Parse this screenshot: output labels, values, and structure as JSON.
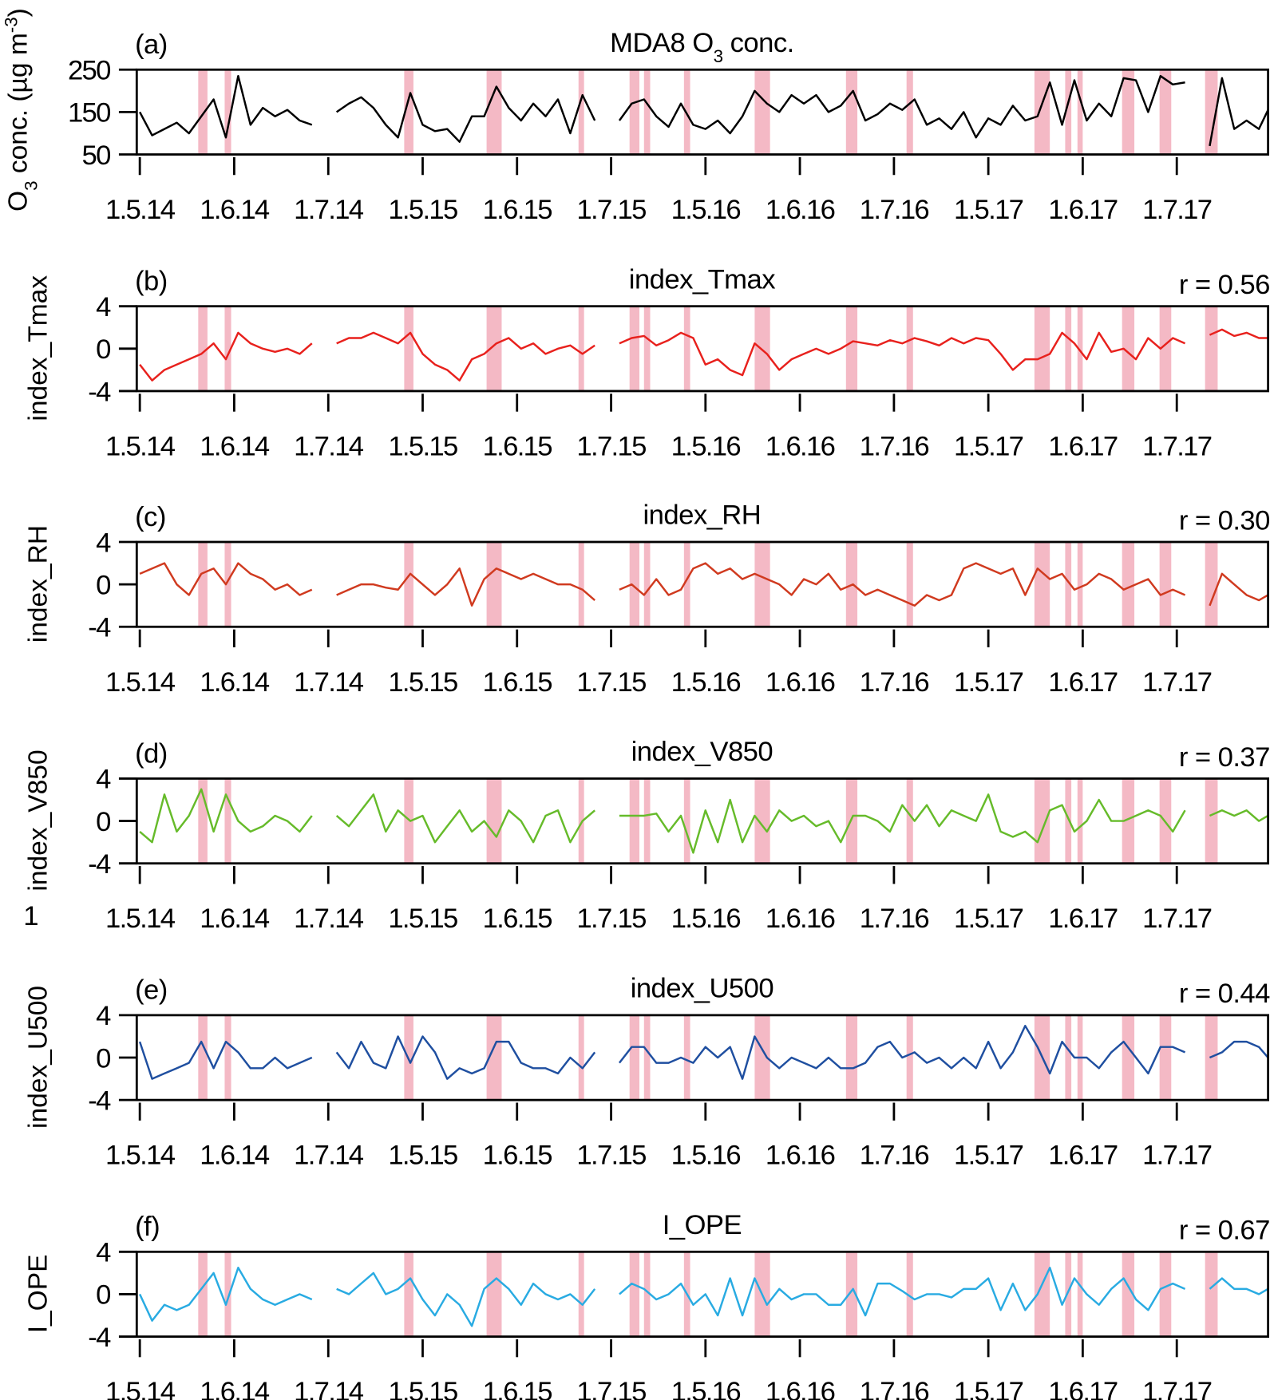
{
  "chart_data": [
    {
      "type": "line",
      "panel_label": "(a)",
      "title_parts": [
        {
          "t": "MDA8 O"
        },
        {
          "t": "3",
          "sub": true
        },
        {
          "t": " conc."
        }
      ],
      "ylabel_parts": [
        {
          "t": "O"
        },
        {
          "t": "3",
          "sub": true
        },
        {
          "t": " conc. (µg m"
        },
        {
          "t": "-3",
          "sup": true
        },
        {
          "t": ")"
        }
      ],
      "r_label": "",
      "ylim": [
        50,
        250
      ],
      "yticks": [
        "250",
        "150",
        "50"
      ],
      "yticks_values": [
        250,
        150,
        50
      ],
      "color": "#000000",
      "values": [
        150,
        95,
        110,
        125,
        100,
        140,
        180,
        90,
        235,
        120,
        160,
        140,
        155,
        130,
        120,
        null,
        150,
        170,
        185,
        160,
        120,
        90,
        195,
        120,
        105,
        110,
        80,
        140,
        140,
        210,
        160,
        130,
        170,
        140,
        180,
        100,
        190,
        130,
        null,
        130,
        170,
        180,
        140,
        115,
        170,
        120,
        110,
        130,
        100,
        140,
        200,
        170,
        150,
        190,
        170,
        190,
        150,
        165,
        200,
        130,
        145,
        170,
        155,
        180,
        120,
        135,
        110,
        150,
        90,
        135,
        120,
        165,
        130,
        140,
        220,
        120,
        225,
        130,
        170,
        140,
        230,
        225,
        150,
        235,
        215,
        220,
        null,
        70,
        230,
        110,
        130,
        110,
        155
      ]
    },
    {
      "type": "line",
      "panel_label": "(b)",
      "title_parts": [
        {
          "t": "index_Tmax"
        }
      ],
      "ylabel_parts": [
        {
          "t": "index_Tmax"
        }
      ],
      "r_label": "r = 0.56",
      "ylim": [
        -4,
        4
      ],
      "yticks": [
        "4",
        "0",
        "-4"
      ],
      "yticks_values": [
        4,
        0,
        -4
      ],
      "color": "#e8211d",
      "values": [
        -1.5,
        -3,
        -2,
        -1.5,
        -1,
        -0.5,
        0.5,
        -1,
        1.5,
        0.5,
        0,
        -0.3,
        0,
        -0.5,
        0.5,
        null,
        0.5,
        1,
        1,
        1.5,
        1,
        0.5,
        1.5,
        -0.5,
        -1.5,
        -2,
        -3,
        -1,
        -0.5,
        0.5,
        1,
        0,
        0.5,
        -0.5,
        0,
        0.3,
        -0.5,
        0.3,
        null,
        0.5,
        1,
        1.2,
        0.3,
        0.8,
        1.5,
        1,
        -1.5,
        -1,
        -2,
        -2.5,
        0.5,
        -0.5,
        -2,
        -1,
        -0.5,
        0,
        -0.5,
        0,
        0.7,
        0.5,
        0.3,
        0.8,
        0.5,
        1,
        0.7,
        0.3,
        1,
        0.5,
        1,
        0.8,
        -0.5,
        -2,
        -1,
        -1,
        -0.5,
        1.5,
        0.5,
        -1,
        1.5,
        -0.3,
        0,
        -1,
        1,
        0,
        1,
        0.5,
        null,
        1.3,
        1.8,
        1.2,
        1.5,
        1,
        1
      ]
    },
    {
      "type": "line",
      "panel_label": "(c)",
      "title_parts": [
        {
          "t": "index_RH"
        }
      ],
      "ylabel_parts": [
        {
          "t": "index_RH"
        }
      ],
      "r_label": "r = 0.30",
      "ylim": [
        -4,
        4
      ],
      "yticks": [
        "4",
        "0",
        "-4"
      ],
      "yticks_values": [
        4,
        0,
        -4
      ],
      "color": "#d03a1f",
      "values": [
        1,
        1.5,
        2,
        0,
        -1,
        1,
        1.5,
        0,
        2,
        1,
        0.5,
        -0.5,
        0,
        -1,
        -0.5,
        null,
        -1,
        -0.5,
        0,
        0,
        -0.3,
        -0.5,
        1,
        0,
        -1,
        0,
        1.5,
        -2,
        0.5,
        1.5,
        1,
        0.5,
        1,
        0.5,
        0,
        0,
        -0.5,
        -1.5,
        null,
        -0.5,
        0,
        -1,
        0.5,
        -1,
        -0.5,
        1.5,
        2,
        1,
        1.5,
        0.5,
        1,
        0.5,
        0,
        -1,
        0.5,
        0,
        1,
        -0.5,
        0,
        -1,
        -0.5,
        -1,
        -1.5,
        -2,
        -1,
        -1.5,
        -1,
        1.5,
        2,
        1.5,
        1,
        1.5,
        -1,
        1.5,
        0.5,
        1,
        -0.5,
        0,
        1,
        0.5,
        -0.5,
        0,
        0.5,
        -1,
        -0.5,
        -1,
        null,
        -2,
        1,
        0,
        -1,
        -1.5,
        -1
      ]
    },
    {
      "type": "line",
      "panel_label": "(d)",
      "title_parts": [
        {
          "t": "index_V850"
        }
      ],
      "ylabel_parts": [
        {
          "t": "index_V850"
        }
      ],
      "r_label": "r = 0.37",
      "ylim": [
        -4,
        4
      ],
      "yticks": [
        "4",
        "0",
        "-4"
      ],
      "yticks_values": [
        4,
        0,
        -4
      ],
      "color": "#66bb2a",
      "values": [
        -1,
        -2,
        2.5,
        -1,
        0.5,
        3,
        -1,
        2.5,
        0,
        -1,
        -0.5,
        0.5,
        0,
        -1,
        0.5,
        null,
        0.5,
        -0.5,
        1,
        2.5,
        -1,
        1,
        0,
        0.5,
        -2,
        -0.5,
        1,
        -1,
        0,
        -1.5,
        1,
        0,
        -2,
        0.5,
        1,
        -2,
        0,
        1,
        null,
        0.5,
        0.5,
        0.5,
        0.7,
        -1,
        0.5,
        -3,
        1,
        -2,
        2,
        -2,
        0.5,
        -1,
        1,
        0,
        0.5,
        -0.5,
        0,
        -2,
        0.5,
        0.5,
        0,
        -1,
        1.5,
        0,
        1.5,
        -0.5,
        1,
        0.5,
        0,
        2.5,
        -1,
        -1.5,
        -1,
        -2,
        1,
        1.5,
        -1,
        0,
        2,
        0,
        0,
        0.5,
        1,
        0.5,
        -1,
        1,
        null,
        0.5,
        1,
        0.5,
        1,
        0,
        0.5
      ]
    },
    {
      "type": "line",
      "panel_label": "(e)",
      "title_parts": [
        {
          "t": "index_U500"
        }
      ],
      "ylabel_parts": [
        {
          "t": "index_U500"
        }
      ],
      "r_label": "r = 0.44",
      "ylim": [
        -4,
        4
      ],
      "yticks": [
        "4",
        "0",
        "-4"
      ],
      "yticks_values": [
        4,
        0,
        -4
      ],
      "color": "#1f4fa0",
      "values": [
        1.5,
        -2,
        -1.5,
        -1,
        -0.5,
        1.5,
        -1,
        1.5,
        0.5,
        -1,
        -1,
        0,
        -1,
        -0.5,
        0,
        null,
        0.5,
        -1,
        1.5,
        -0.5,
        -1,
        2,
        -0.5,
        2,
        0.5,
        -2,
        -1,
        -1.5,
        -1,
        1.5,
        1.5,
        -0.5,
        -1,
        -1,
        -1.5,
        0,
        -1,
        0.5,
        null,
        -0.5,
        1,
        1,
        -0.5,
        -0.5,
        0,
        -0.5,
        1,
        0,
        1,
        -2,
        2,
        0,
        -1,
        0,
        -0.5,
        -1,
        0,
        -1,
        -1,
        -0.5,
        1,
        1.5,
        0,
        0.5,
        -0.5,
        0,
        -1,
        0,
        -1,
        1.5,
        -1,
        0.5,
        3,
        1,
        -1.5,
        1.5,
        0,
        0,
        -1,
        0.5,
        1.5,
        0,
        -1.5,
        1,
        1,
        0.5,
        null,
        0,
        0.5,
        1.5,
        1.5,
        1,
        0
      ]
    },
    {
      "type": "line",
      "panel_label": "(f)",
      "title_parts": [
        {
          "t": "I_OPE"
        }
      ],
      "ylabel_parts": [
        {
          "t": "I_OPE"
        }
      ],
      "r_label": "r = 0.67",
      "ylim": [
        -4,
        4
      ],
      "yticks": [
        "4",
        "0",
        "-4"
      ],
      "yticks_values": [
        4,
        0,
        -4
      ],
      "color": "#29abe2",
      "values": [
        0,
        -2.5,
        -1,
        -1.5,
        -1,
        0.5,
        2,
        -1,
        2.5,
        0.5,
        -0.5,
        -1,
        -0.5,
        0,
        -0.5,
        null,
        0.5,
        0,
        1,
        2,
        0,
        0.5,
        1.5,
        -0.5,
        -2,
        0,
        -1,
        -3,
        0.5,
        1.5,
        0.5,
        -1,
        1,
        0,
        -0.5,
        0,
        -1,
        0.5,
        null,
        0,
        1,
        0.5,
        -0.5,
        0,
        1,
        -1,
        0,
        -2,
        1.5,
        -2,
        1.5,
        -1,
        0.5,
        -0.5,
        0,
        0,
        -1,
        -1,
        0.5,
        -2,
        1,
        1,
        0.3,
        -0.5,
        0,
        0,
        -0.3,
        0.5,
        0.5,
        1.5,
        -1.5,
        1,
        -1.5,
        0,
        2.5,
        -1,
        1.5,
        0,
        -1,
        0.5,
        1.5,
        -0.5,
        -1.5,
        0.5,
        1,
        0.5,
        null,
        0.5,
        1.5,
        0.5,
        0.5,
        0,
        0.5
      ]
    }
  ],
  "x_axis": {
    "day_step": 4,
    "day_range": [
      -1,
      367
    ],
    "tick_labels": [
      "1.5.14",
      "1.6.14",
      "1.7.14",
      "1.5.15",
      "1.6.15",
      "1.7.15",
      "1.5.16",
      "1.6.16",
      "1.7.16",
      "1.5.17",
      "1.6.17",
      "1.7.17"
    ],
    "tick_days": [
      0,
      30.7,
      61.3,
      92,
      122.7,
      153.3,
      184,
      214.7,
      245.3,
      276,
      306.7,
      337.3
    ]
  },
  "highlight_periods_days": [
    [
      19,
      22
    ],
    [
      27.6,
      29.7
    ],
    [
      86,
      89
    ],
    [
      112.8,
      117.7
    ],
    [
      142.7,
      144.5
    ],
    [
      159.3,
      162.5
    ],
    [
      164,
      166
    ],
    [
      177,
      179
    ],
    [
      200,
      205
    ],
    [
      229.7,
      233.4
    ],
    [
      249.4,
      251.5
    ],
    [
      291,
      296
    ],
    [
      301,
      303
    ],
    [
      305,
      306.7
    ],
    [
      319.5,
      323.5
    ],
    [
      331.7,
      335.5
    ],
    [
      346.5,
      350.6
    ]
  ],
  "highlight_color": "#f4b9c5",
  "stray_label": "1"
}
